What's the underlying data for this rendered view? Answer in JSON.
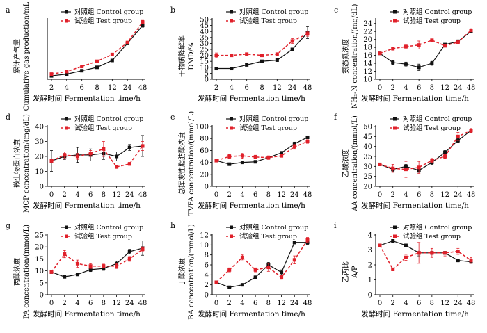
{
  "colors": {
    "control": "#111111",
    "test": "#e0202a"
  },
  "chart_data": [
    {
      "panel": "a",
      "type": "line",
      "ylabel": [
        "累计产气量",
        "Cumulative gas production/mL"
      ],
      "xlabel": "发酵时间 Fermentation time/h",
      "x": [
        2,
        4,
        6,
        8,
        12,
        24,
        48
      ],
      "ylim": [
        0,
        70
      ],
      "yticks": [],
      "legend": [
        "对照组 Control group",
        "试验组 Test group"
      ],
      "series": [
        {
          "name": "对照组 Control group",
          "values": [
            4,
            6,
            10,
            14,
            22,
            42,
            63
          ],
          "err": [
            0,
            0,
            0,
            0,
            0,
            0,
            2
          ]
        },
        {
          "name": "试验组 Test group",
          "values": [
            6,
            9,
            15,
            21,
            29,
            43,
            67
          ],
          "err": [
            0,
            0,
            0,
            0,
            0,
            0,
            2
          ]
        }
      ]
    },
    {
      "panel": "b",
      "type": "line",
      "ylabel": [
        "干物质降解率",
        "DMD/%"
      ],
      "xlabel": "发酵时间 Fermentation time/h",
      "x": [
        2,
        4,
        6,
        8,
        12,
        24,
        48
      ],
      "ylim": [
        0,
        50
      ],
      "yticks": [
        0,
        5,
        10,
        15,
        20,
        25,
        30,
        35,
        40,
        45,
        50
      ],
      "legend": [
        "对照组 Control group",
        "试验组 Test group"
      ],
      "series": [
        {
          "name": "对照组 Control group",
          "values": [
            9,
            9,
            12,
            15,
            16,
            25,
            39
          ],
          "err": [
            0,
            0,
            0,
            0,
            0,
            1,
            5
          ]
        },
        {
          "name": "试验组 Test group",
          "values": [
            20,
            20,
            21,
            20,
            21,
            32,
            38
          ],
          "err": [
            2,
            1,
            1,
            1,
            1,
            2,
            2
          ]
        }
      ]
    },
    {
      "panel": "c",
      "type": "line",
      "ylabel": [
        "氨态氮浓度",
        "NH₃-N concentration/(mg/dL)"
      ],
      "xlabel": "发酵时间 Fermentation time/h",
      "x": [
        0,
        2,
        4,
        6,
        8,
        12,
        24,
        48
      ],
      "ylim": [
        10,
        25
      ],
      "yticks": [
        10,
        12,
        14,
        16,
        18,
        20,
        22,
        24
      ],
      "legend": [
        "对照组 Control group",
        "试验组 Test group"
      ],
      "series": [
        {
          "name": "对照组 Control group",
          "values": [
            16.5,
            14.2,
            13.8,
            13.0,
            14.0,
            18.7,
            19.5,
            22.0
          ],
          "err": [
            0,
            0.5,
            0.5,
            0.8,
            0.5,
            0.3,
            0.4,
            0.4
          ]
        },
        {
          "name": "试验组 Test group",
          "values": [
            16.5,
            17.7,
            18.2,
            18.6,
            19.8,
            18.4,
            19.3,
            22.3
          ],
          "err": [
            0,
            0.4,
            0.4,
            1.0,
            0.3,
            0.3,
            0.3,
            0.4
          ]
        }
      ]
    },
    {
      "panel": "d",
      "type": "line",
      "ylabel": [
        "微生物蛋白浓度",
        "MCP concentration/(mg/dL)"
      ],
      "xlabel": "发酵时间 Fermentation time/h",
      "x": [
        0,
        2,
        4,
        6,
        8,
        12,
        24,
        48
      ],
      "ylim": [
        0,
        40
      ],
      "yticks": [
        0,
        10,
        20,
        30,
        40
      ],
      "legend": [
        "对照组 Control group",
        "试验组 Test group"
      ],
      "series": [
        {
          "name": "对照组 Control group",
          "values": [
            17,
            20,
            21,
            21,
            22,
            20,
            26,
            27
          ],
          "err": [
            7,
            2,
            5,
            4,
            4,
            3,
            2,
            7
          ]
        },
        {
          "name": "试验组 Test group",
          "values": [
            17,
            21,
            20,
            22,
            25,
            13,
            15,
            27
          ],
          "err": [
            0,
            2,
            2,
            2,
            5,
            1,
            1,
            3
          ]
        }
      ]
    },
    {
      "panel": "e",
      "type": "line",
      "ylabel": [
        "总挥发性脂肪酸浓度",
        "TVFA concentration/(mmol/L)"
      ],
      "xlabel": "发酵时间 Fermentation time/h",
      "x": [
        0,
        2,
        4,
        6,
        8,
        12,
        24,
        48
      ],
      "ylim": [
        0,
        100
      ],
      "yticks": [
        0,
        20,
        40,
        60,
        80,
        100
      ],
      "legend": [
        "对照组 Control group",
        "试验组 Test group"
      ],
      "series": [
        {
          "name": "对照组 Control group",
          "values": [
            43,
            37,
            40,
            41,
            48,
            56,
            71,
            82
          ],
          "err": [
            0,
            2,
            2,
            2,
            2,
            2,
            3,
            2
          ]
        },
        {
          "name": "试验组 Test group",
          "values": [
            43,
            50,
            51,
            49,
            48,
            51,
            66,
            75
          ],
          "err": [
            0,
            3,
            4,
            3,
            3,
            2,
            4,
            3
          ]
        }
      ]
    },
    {
      "panel": "f",
      "type": "line",
      "ylabel": [
        "乙酸浓度",
        "AA concentration/(mmol/L)"
      ],
      "xlabel": "发酵时间 Fermentation time/h",
      "x": [
        0,
        2,
        4,
        6,
        8,
        12,
        24,
        48
      ],
      "ylim": [
        20,
        50
      ],
      "yticks": [
        20,
        25,
        30,
        35,
        40,
        45,
        50
      ],
      "legend": [
        "对照组 Control group",
        "试验组 Test group"
      ],
      "series": [
        {
          "name": "对照组 Control group",
          "values": [
            31,
            28.5,
            30,
            28,
            32,
            37,
            43,
            48
          ],
          "err": [
            0,
            1,
            1,
            1,
            1,
            1,
            1,
            1
          ]
        },
        {
          "name": "试验组 Test group",
          "values": [
            31,
            29,
            28.5,
            29.5,
            33,
            35,
            45,
            48
          ],
          "err": [
            0,
            2,
            4,
            3,
            1,
            1,
            2,
            1
          ]
        }
      ]
    },
    {
      "panel": "g",
      "type": "line",
      "ylabel": [
        "丙酸浓度",
        "PA concentration/(mmol/L)"
      ],
      "xlabel": "发酵时间 Fermentation time/h",
      "x": [
        0,
        2,
        4,
        6,
        8,
        12,
        24,
        48
      ],
      "ylim": [
        0,
        25
      ],
      "yticks": [
        0,
        5,
        10,
        15,
        20,
        25
      ],
      "legend": [
        "对照组 Control group",
        "试验组 Test group"
      ],
      "series": [
        {
          "name": "对照组 Control group",
          "values": [
            9.5,
            7.5,
            8.5,
            10.5,
            11,
            13,
            18,
            19.5
          ],
          "err": [
            0,
            0.5,
            0.5,
            0.8,
            0.8,
            1,
            1,
            3
          ]
        },
        {
          "name": "试验组 Test group",
          "values": [
            9.5,
            17,
            13,
            12,
            12,
            12,
            15,
            19
          ],
          "err": [
            0,
            1.5,
            1.5,
            1,
            0.8,
            1,
            1,
            1
          ]
        }
      ]
    },
    {
      "panel": "h",
      "type": "line",
      "ylabel": [
        "丁酸浓度",
        "BA concentration/(mmol/L)"
      ],
      "xlabel": "发酵时间 Fermentation time/h",
      "x": [
        0,
        2,
        4,
        6,
        8,
        12,
        24,
        48
      ],
      "ylim": [
        0,
        12
      ],
      "yticks": [
        0,
        2,
        4,
        6,
        8,
        10,
        12
      ],
      "legend": [
        "对照组 Control group",
        "试验组 Test group"
      ],
      "series": [
        {
          "name": "对照组 Control group",
          "values": [
            2.5,
            1.5,
            2.0,
            3.5,
            6.0,
            4.5,
            10.5,
            10.5
          ],
          "err": [
            0,
            0.2,
            0.2,
            0.3,
            0.5,
            0.5,
            0.3,
            0.4
          ]
        },
        {
          "name": "试验组 Test group",
          "values": [
            2.5,
            5.0,
            7.5,
            5.0,
            5.5,
            3.5,
            7.0,
            11.0
          ],
          "err": [
            0,
            0.4,
            0.5,
            0.4,
            0.8,
            0.4,
            0.8,
            0.5
          ]
        }
      ]
    },
    {
      "panel": "i",
      "type": "line",
      "ylabel": [
        "乙丙比",
        "A/P"
      ],
      "xlabel": "发酵时间 Fermentation time/h",
      "x": [
        0,
        2,
        4,
        6,
        8,
        12,
        24,
        48
      ],
      "ylim": [
        0,
        4
      ],
      "yticks": [
        0,
        1,
        2,
        3,
        4
      ],
      "legend": [
        "对照组 Control group",
        "试验组 Test group"
      ],
      "series": [
        {
          "name": "对照组 Control group",
          "values": [
            3.3,
            3.6,
            3.3,
            2.8,
            2.8,
            2.8,
            2.3,
            2.2
          ],
          "err": [
            0,
            0.1,
            0.1,
            0.2,
            0.1,
            0.1,
            0.1,
            0.1
          ]
        },
        {
          "name": "试验组 Test group",
          "values": [
            3.3,
            1.7,
            2.5,
            2.8,
            2.8,
            2.8,
            2.9,
            2.3
          ],
          "err": [
            0,
            0.1,
            0.2,
            0.7,
            0.3,
            0.2,
            0.2,
            0.2
          ]
        }
      ]
    }
  ]
}
